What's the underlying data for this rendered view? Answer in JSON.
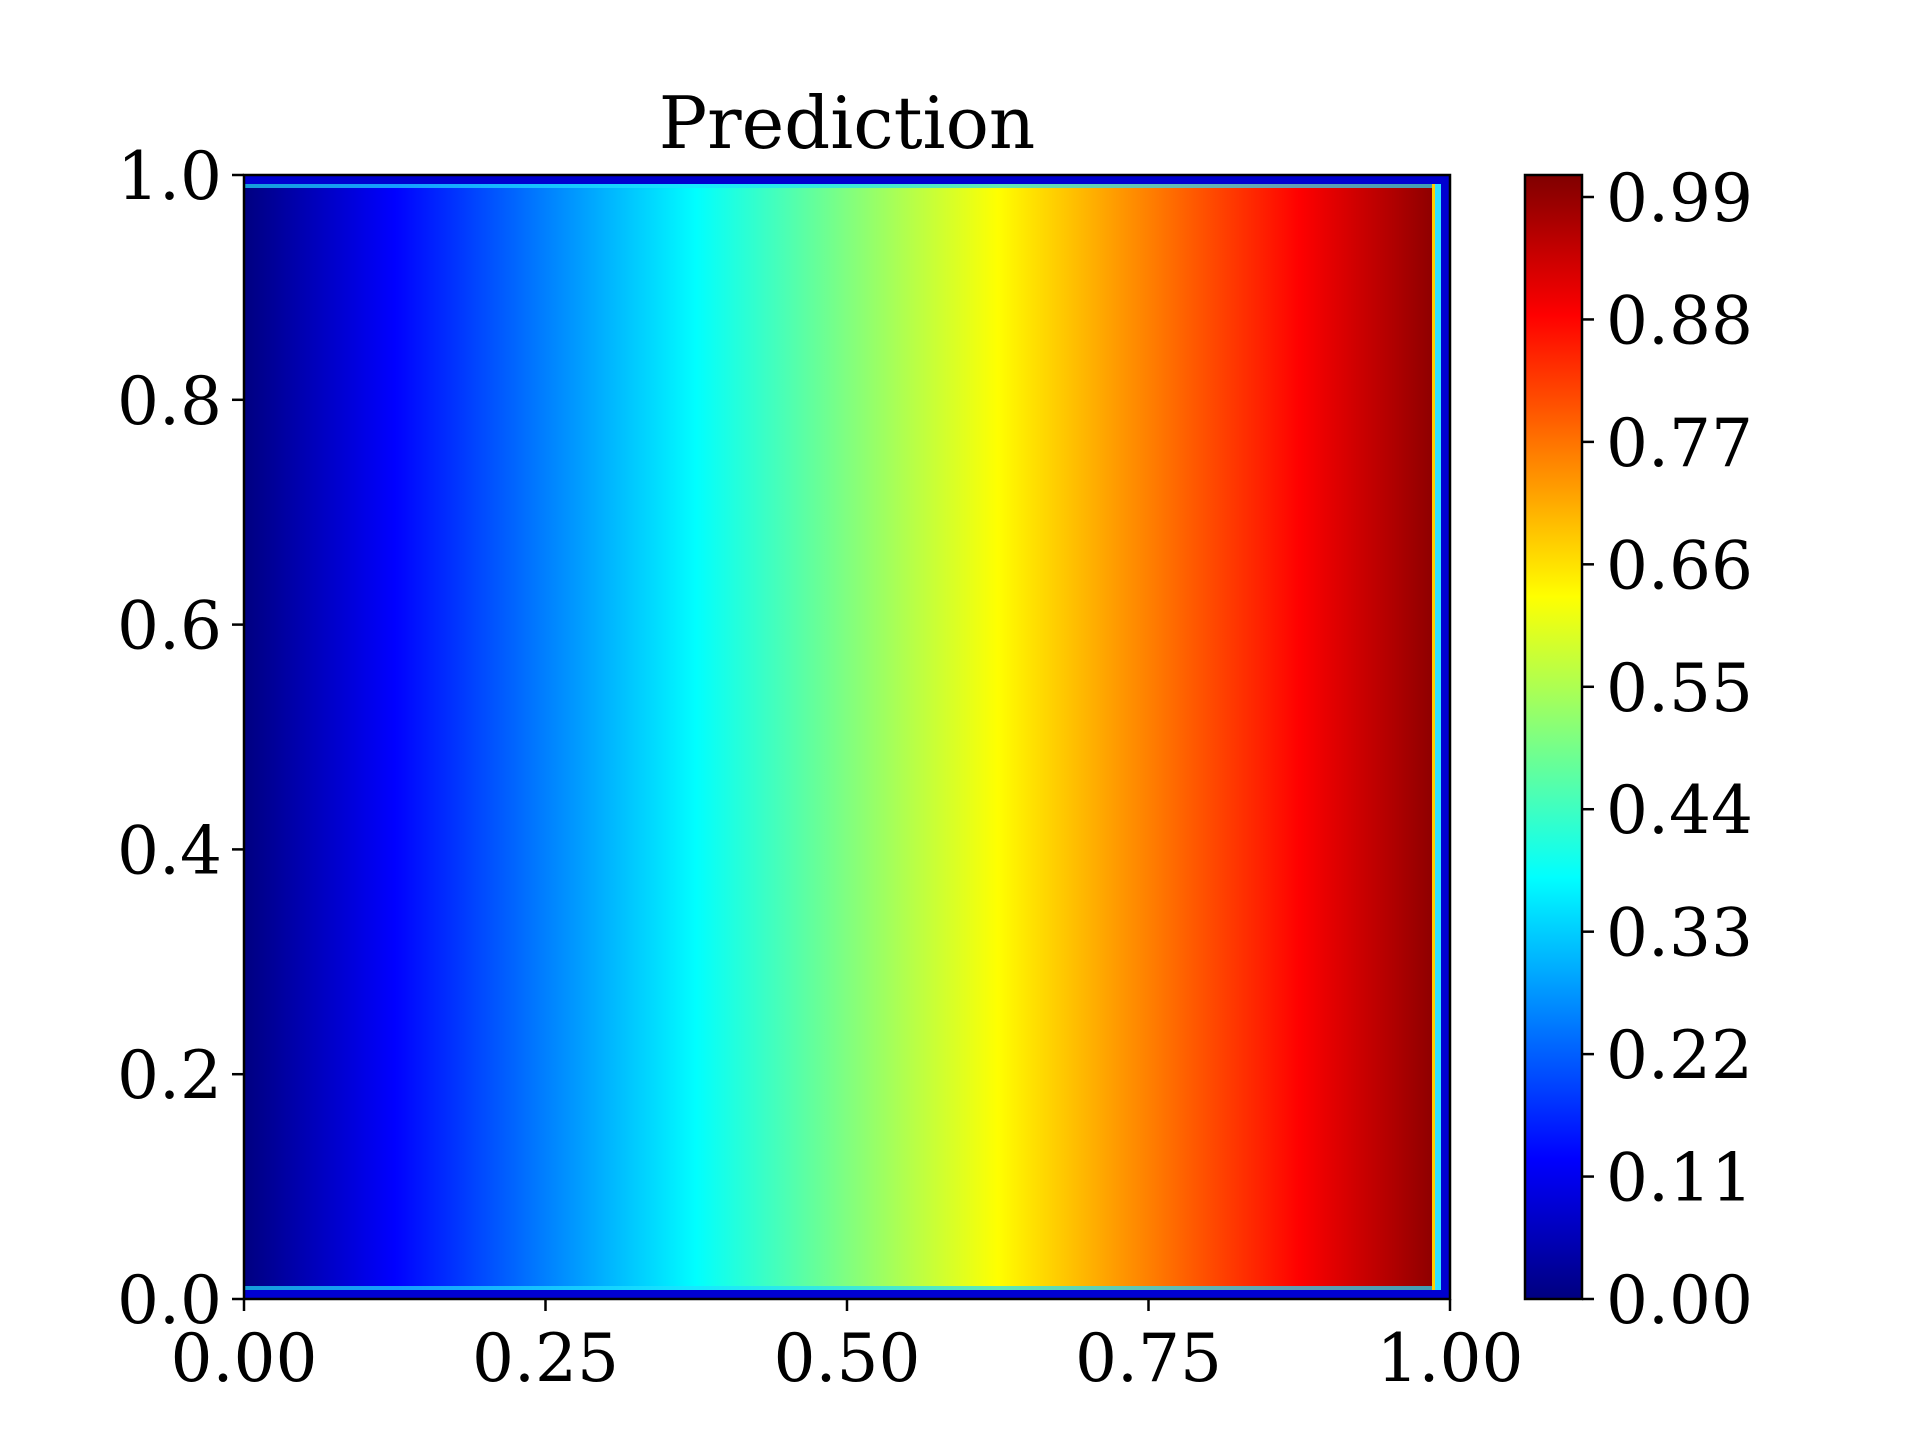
{
  "chart_data": {
    "type": "heatmap",
    "title": "Prediction",
    "xlabel": "",
    "ylabel": "",
    "xlim": [
      0.0,
      1.0
    ],
    "ylim": [
      0.0,
      1.0
    ],
    "x_ticks": [
      "0.00",
      "0.25",
      "0.50",
      "0.75",
      "1.00"
    ],
    "y_ticks": [
      "0.0",
      "0.2",
      "0.4",
      "0.6",
      "0.8",
      "1.0"
    ],
    "colorbar": {
      "colormap": "jet",
      "range": [
        0.0,
        0.99
      ],
      "ticks": [
        "0.00",
        "0.11",
        "0.22",
        "0.33",
        "0.44",
        "0.55",
        "0.66",
        "0.77",
        "0.88",
        "0.99"
      ]
    },
    "field": {
      "description": "value increases linearly with x (approximately equal to x) across the domain; thin low-value boundary layer along top, bottom and right edges",
      "x_samples": [
        0.0,
        0.25,
        0.5,
        0.75,
        0.99,
        1.0
      ],
      "values_along_x": [
        0.0,
        0.25,
        0.5,
        0.75,
        0.99,
        0.0
      ]
    }
  }
}
